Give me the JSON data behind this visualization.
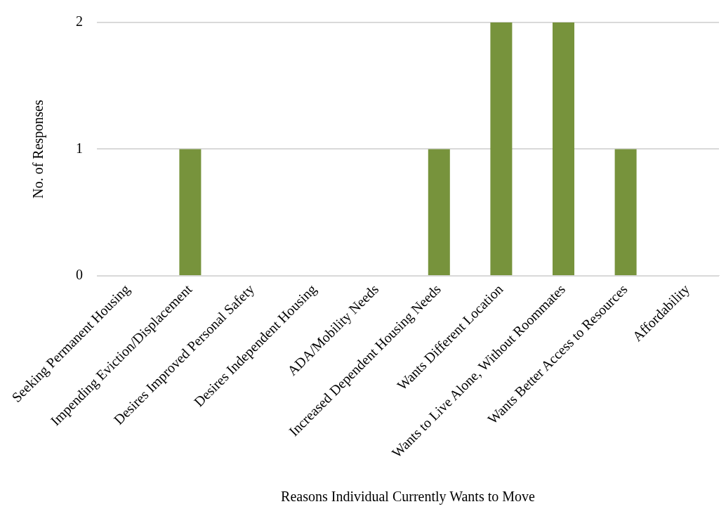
{
  "chart_data": {
    "type": "bar",
    "categories": [
      "Seeking Permanent Housing",
      "Impending Eviction/Displacement",
      "Desires Improved Personal Safety",
      "Desires Independent Housing",
      "ADA/Mobility Needs",
      "Increased Dependent Housing Needs",
      "Wants Different Location",
      "Wants to Live Alone, Without Roommates",
      "Wants Better Access to Resources",
      "Affordability"
    ],
    "values": [
      0,
      1,
      0,
      0,
      0,
      1,
      2,
      2,
      1,
      0
    ],
    "color": "#77933c",
    "xlabel": "Reasons Individual Currently Wants to Move",
    "ylabel": "No. of Responses",
    "ylim": [
      0,
      2
    ],
    "yticks": [
      0,
      1,
      2
    ],
    "grid": "y",
    "legend": false
  }
}
